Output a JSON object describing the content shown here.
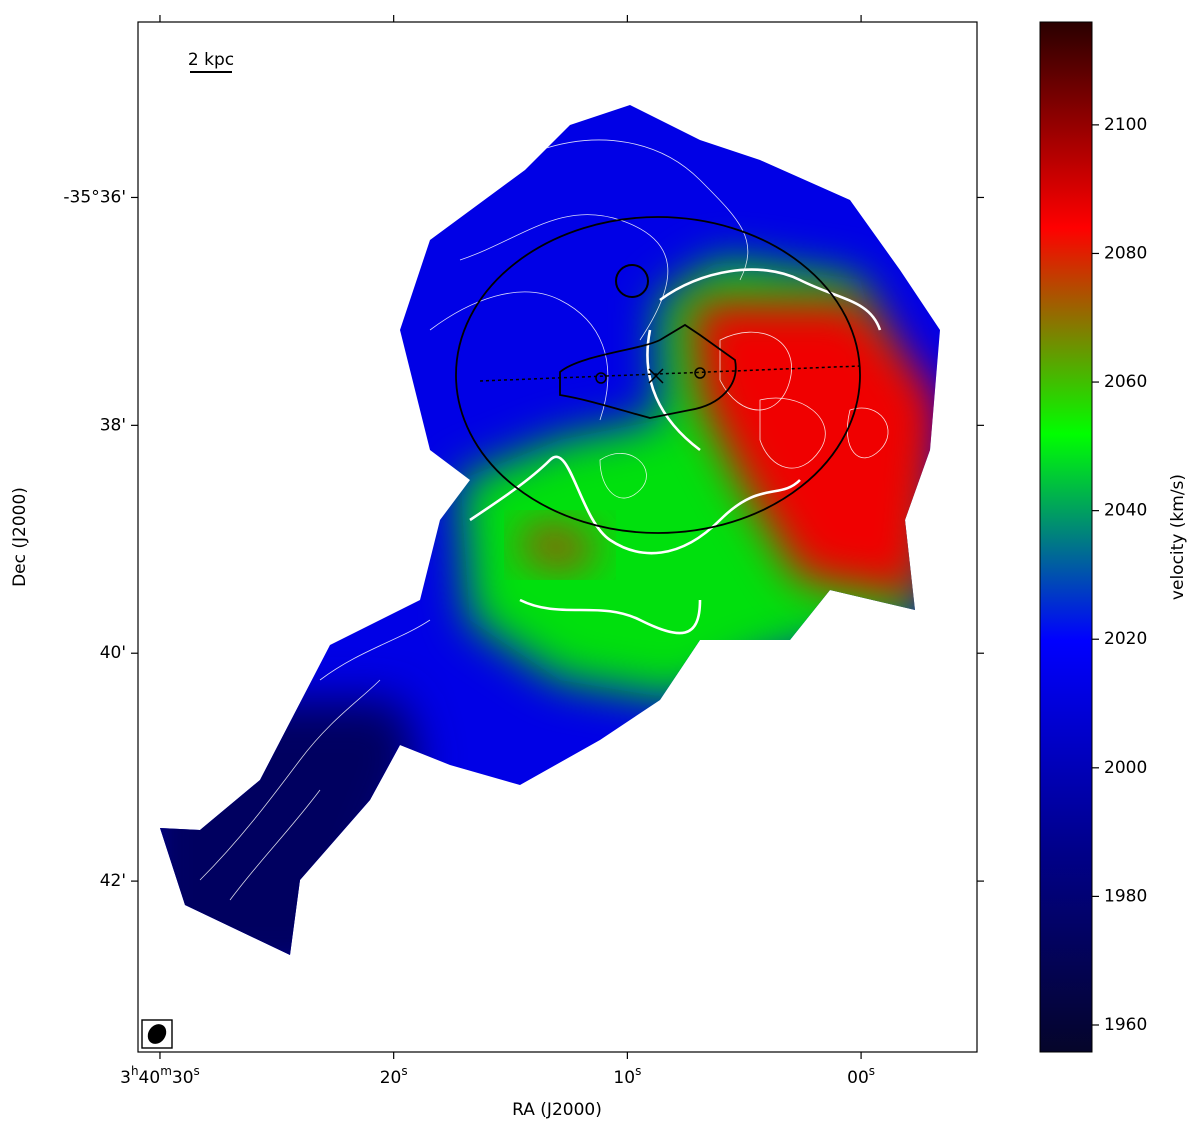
{
  "chart_data": {
    "type": "velocity-map",
    "x_label": "RA (J2000)",
    "y_label": "Dec (J2000)",
    "colorbar_label": "velocity (km/s)",
    "scale_bar": "2 kpc",
    "xlim": [
      30.94,
      -4.96
    ],
    "xticks": [
      {
        "value": 30,
        "label": "3h40m30s"
      },
      {
        "value": 20,
        "label": "20s"
      },
      {
        "value": 10,
        "label": "10s"
      },
      {
        "value": 0,
        "label": "00s"
      }
    ],
    "ylim": [
      34.46,
      43.5
    ],
    "yticks": [
      {
        "value": 36,
        "label": "-35°36'"
      },
      {
        "value": 38,
        "label": "38'"
      },
      {
        "value": 40,
        "label": "40'"
      },
      {
        "value": 42,
        "label": "42'"
      }
    ],
    "clim": [
      1955.8,
      2116
    ],
    "cticks": [
      1960,
      1980,
      2000,
      2020,
      2040,
      2060,
      2080,
      2100
    ],
    "colormap": [
      "#05052a",
      "#00008c",
      "#0000ff",
      "#00ff00",
      "#ff0000",
      "#2a0000"
    ]
  }
}
